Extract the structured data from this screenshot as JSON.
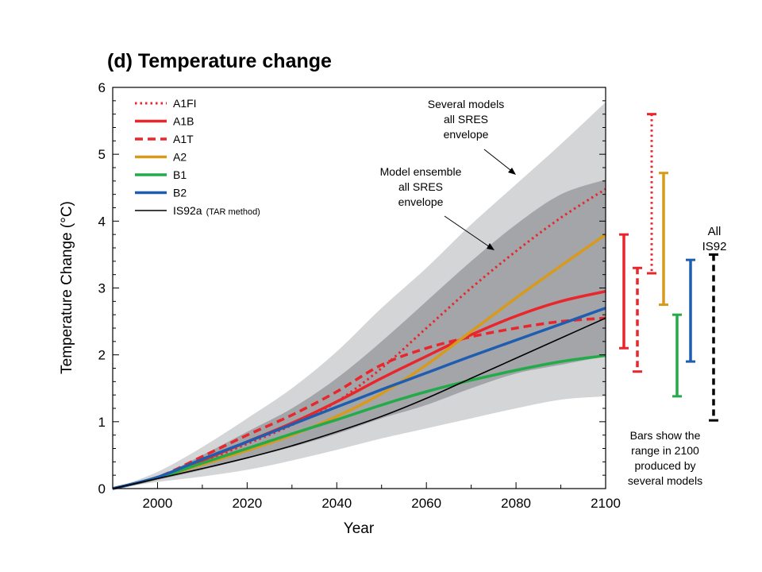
{
  "title": "(d) Temperature change",
  "xlabel": "Year",
  "ylabel": "Temperature Change (°C)",
  "chart_data": {
    "type": "line",
    "title": "(d) Temperature change",
    "xlabel": "Year",
    "ylabel": "Temperature Change (°C)",
    "xlim": [
      1990,
      2100
    ],
    "ylim": [
      0,
      6
    ],
    "x_ticks": [
      2000,
      2020,
      2040,
      2060,
      2080,
      2100
    ],
    "y_ticks": [
      0,
      1,
      2,
      3,
      4,
      5,
      6
    ],
    "series": [
      {
        "name": "A1FI",
        "color": "#e8262b",
        "style": "dotted",
        "x": [
          1990,
          2000,
          2010,
          2020,
          2030,
          2040,
          2050,
          2060,
          2070,
          2080,
          2090,
          2100
        ],
        "y": [
          0,
          0.16,
          0.4,
          0.67,
          0.95,
          1.3,
          1.8,
          2.4,
          3.0,
          3.55,
          4.05,
          4.48
        ]
      },
      {
        "name": "A1B",
        "color": "#e8262b",
        "style": "solid",
        "x": [
          1990,
          2000,
          2010,
          2020,
          2030,
          2040,
          2050,
          2060,
          2070,
          2080,
          2090,
          2100
        ],
        "y": [
          0,
          0.16,
          0.42,
          0.7,
          0.98,
          1.3,
          1.65,
          1.98,
          2.3,
          2.58,
          2.8,
          2.95
        ]
      },
      {
        "name": "A1T",
        "color": "#e8262b",
        "style": "dashed",
        "x": [
          1990,
          2000,
          2010,
          2020,
          2030,
          2040,
          2050,
          2060,
          2070,
          2080,
          2090,
          2100
        ],
        "y": [
          0,
          0.17,
          0.48,
          0.8,
          1.1,
          1.45,
          1.85,
          2.1,
          2.27,
          2.4,
          2.5,
          2.55
        ]
      },
      {
        "name": "A2",
        "color": "#d89a1c",
        "style": "solid",
        "x": [
          1990,
          2000,
          2010,
          2020,
          2030,
          2040,
          2050,
          2060,
          2070,
          2080,
          2090,
          2100
        ],
        "y": [
          0,
          0.16,
          0.36,
          0.57,
          0.8,
          1.08,
          1.42,
          1.85,
          2.35,
          2.85,
          3.33,
          3.8
        ]
      },
      {
        "name": "B1",
        "color": "#23ab4a",
        "style": "solid",
        "x": [
          1990,
          2000,
          2010,
          2020,
          2030,
          2040,
          2050,
          2060,
          2070,
          2080,
          2090,
          2100
        ],
        "y": [
          0,
          0.16,
          0.38,
          0.6,
          0.82,
          1.03,
          1.25,
          1.45,
          1.62,
          1.77,
          1.9,
          1.99
        ]
      },
      {
        "name": "B2",
        "color": "#1f5db0",
        "style": "solid",
        "x": [
          1990,
          2000,
          2010,
          2020,
          2030,
          2040,
          2050,
          2060,
          2070,
          2080,
          2090,
          2100
        ],
        "y": [
          0,
          0.17,
          0.44,
          0.7,
          0.96,
          1.22,
          1.48,
          1.73,
          1.98,
          2.22,
          2.46,
          2.7
        ]
      },
      {
        "name": "IS92a (TAR method)",
        "color": "#000000",
        "style": "thin",
        "x": [
          1990,
          2000,
          2010,
          2020,
          2030,
          2040,
          2050,
          2060,
          2070,
          2080,
          2090,
          2100
        ],
        "y": [
          0,
          0.15,
          0.3,
          0.46,
          0.64,
          0.85,
          1.08,
          1.35,
          1.65,
          1.95,
          2.25,
          2.55
        ]
      }
    ],
    "envelopes": [
      {
        "name": "Several models all SRES envelope",
        "color": "#d4d5d7",
        "x": [
          1990,
          2000,
          2010,
          2020,
          2030,
          2040,
          2050,
          2060,
          2070,
          2080,
          2090,
          2100
        ],
        "upper": [
          0,
          0.25,
          0.62,
          1.05,
          1.5,
          2.05,
          2.7,
          3.3,
          3.95,
          4.55,
          5.15,
          5.78
        ],
        "lower": [
          0,
          0.1,
          0.18,
          0.28,
          0.42,
          0.58,
          0.75,
          0.9,
          1.05,
          1.2,
          1.33,
          1.38
        ]
      },
      {
        "name": "Model ensemble all SRES envelope",
        "color": "#a4a5a9",
        "x": [
          1990,
          2000,
          2010,
          2020,
          2030,
          2040,
          2050,
          2060,
          2070,
          2080,
          2090,
          2100
        ],
        "upper": [
          0,
          0.18,
          0.5,
          0.85,
          1.2,
          1.65,
          2.2,
          2.8,
          3.4,
          3.95,
          4.4,
          4.62
        ],
        "lower": [
          0,
          0.13,
          0.28,
          0.45,
          0.62,
          0.82,
          1.05,
          1.25,
          1.5,
          1.72,
          1.85,
          1.98
        ]
      }
    ],
    "range_bars_2100": [
      {
        "name": "A1B",
        "color": "#e8262b",
        "style": "solid",
        "low": 2.1,
        "high": 3.8
      },
      {
        "name": "A1T",
        "color": "#e8262b",
        "style": "dashed",
        "low": 1.75,
        "high": 3.3
      },
      {
        "name": "A1FI",
        "color": "#e8262b",
        "style": "dotted",
        "low": 3.22,
        "high": 5.6
      },
      {
        "name": "A2",
        "color": "#d89a1c",
        "style": "solid",
        "low": 2.75,
        "high": 4.72
      },
      {
        "name": "B1",
        "color": "#23ab4a",
        "style": "solid",
        "low": 1.38,
        "high": 2.6
      },
      {
        "name": "B2",
        "color": "#1f5db0",
        "style": "solid",
        "low": 1.9,
        "high": 3.42
      },
      {
        "name": "All IS92",
        "color": "#000000",
        "style": "dashed",
        "low": 1.02,
        "high": 3.5
      }
    ]
  },
  "legend": [
    {
      "label": "A1FI",
      "note": "",
      "color": "#e8262b",
      "style": "dotted"
    },
    {
      "label": "A1B",
      "note": "",
      "color": "#e8262b",
      "style": "solid"
    },
    {
      "label": "A1T",
      "note": "",
      "color": "#e8262b",
      "style": "dashed"
    },
    {
      "label": "A2",
      "note": "",
      "color": "#d89a1c",
      "style": "solid"
    },
    {
      "label": "B1",
      "note": "",
      "color": "#23ab4a",
      "style": "solid"
    },
    {
      "label": "B2",
      "note": "",
      "color": "#1f5db0",
      "style": "solid"
    },
    {
      "label": "IS92a",
      "note": "(TAR method)",
      "color": "#000000",
      "style": "thin"
    }
  ],
  "annotations": {
    "several_models": [
      "Several models",
      "all SRES",
      "envelope"
    ],
    "model_ensemble": [
      "Model ensemble",
      "all SRES",
      "envelope"
    ],
    "all_is92": [
      "All",
      "IS92"
    ],
    "bars_note": [
      "Bars show the",
      "range in 2100",
      "produced by",
      "several models"
    ]
  }
}
